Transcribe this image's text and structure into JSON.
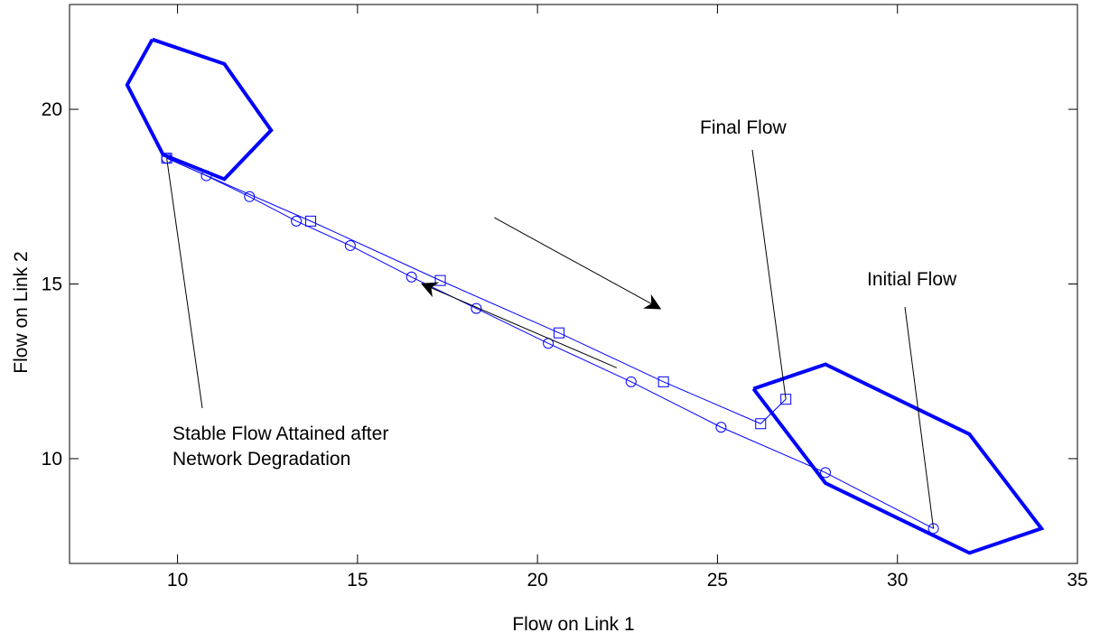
{
  "chart_data": {
    "type": "line",
    "title": "",
    "xlabel": "Flow on Link 1",
    "ylabel": "Flow on Link 2",
    "xlim": [
      7,
      35
    ],
    "ylim": [
      7,
      23
    ],
    "xticks": [
      10,
      15,
      20,
      25,
      30,
      35
    ],
    "yticks": [
      10,
      15,
      20
    ],
    "grid": false,
    "legend": "none",
    "colors": {
      "series": "#0000ff",
      "regions": "#0000ff",
      "annotations": "#000000"
    },
    "series": [
      {
        "marker": "circle",
        "x": [
          31.0,
          28.0,
          25.1,
          22.6,
          20.3,
          18.3,
          16.5,
          14.8,
          13.3,
          12.0,
          10.8,
          9.7
        ],
        "y": [
          8.0,
          9.6,
          10.9,
          12.2,
          13.3,
          14.3,
          15.2,
          16.1,
          16.8,
          17.5,
          18.1,
          18.6
        ]
      },
      {
        "marker": "square",
        "x": [
          9.7,
          13.7,
          17.3,
          20.6,
          23.5,
          26.2,
          26.9
        ],
        "y": [
          18.6,
          16.8,
          15.1,
          13.6,
          12.2,
          11.0,
          11.7
        ]
      }
    ],
    "regions": [
      {
        "x": [
          9.3,
          11.3,
          12.6,
          11.3,
          9.6,
          8.6,
          9.3
        ],
        "y": [
          22.0,
          21.3,
          19.4,
          18.0,
          18.7,
          20.7,
          22.0
        ]
      },
      {
        "x": [
          26.0,
          28.0,
          32.0,
          34.0,
          32.0,
          28.0,
          26.0
        ],
        "y": [
          12.0,
          12.7,
          10.7,
          8.0,
          7.3,
          9.3,
          12.0
        ]
      }
    ],
    "annotations": [
      {
        "lines": [
          "Final Flow"
        ],
        "point": [
          26.9,
          11.7
        ]
      },
      {
        "lines": [
          "Initial Flow"
        ],
        "point": [
          31.0,
          8.0
        ]
      },
      {
        "lines": [
          "Stable Flow Attained after",
          "Network Degradation"
        ],
        "point": [
          9.7,
          18.6
        ]
      }
    ],
    "direction_arrows": [
      {
        "from": [
          18.8,
          16.9
        ],
        "to": [
          23.4,
          14.3
        ]
      },
      {
        "from": [
          22.2,
          12.6
        ],
        "to": [
          16.8,
          15.0
        ]
      }
    ]
  }
}
